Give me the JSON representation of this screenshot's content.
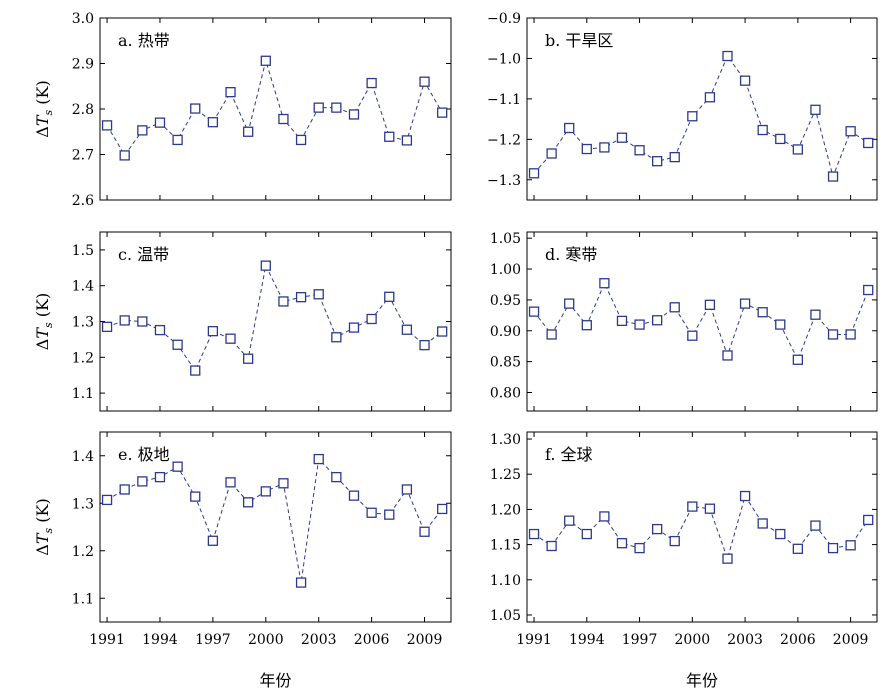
{
  "chart_data": [
    {
      "type": "line",
      "panel_label": "a. 热带",
      "ylabel": "ΔTs (K)",
      "xlabel": "",
      "ylim": [
        2.6,
        3.0
      ],
      "yticks": [
        "3.0",
        "2.9",
        "2.8",
        "2.7",
        "2.6"
      ],
      "xlim": [
        1990.6,
        2010.5
      ],
      "xticks": [],
      "x": [
        1991,
        1992,
        1993,
        1994,
        1995,
        1996,
        1997,
        1998,
        1999,
        2000,
        2001,
        2002,
        2003,
        2004,
        2005,
        2006,
        2007,
        2008,
        2009,
        2010
      ],
      "values": [
        2.764,
        2.698,
        2.753,
        2.77,
        2.732,
        2.801,
        2.771,
        2.837,
        2.75,
        2.906,
        2.778,
        2.732,
        2.803,
        2.803,
        2.788,
        2.857,
        2.739,
        2.731,
        2.86,
        2.792
      ]
    },
    {
      "type": "line",
      "panel_label": "b. 干旱区",
      "ylabel": "",
      "xlabel": "",
      "ylim": [
        -1.35,
        -0.9
      ],
      "yticks": [
        "−0.9",
        "−1.0",
        "−1.1",
        "−1.2",
        "−1.3"
      ],
      "xlim": [
        1990.6,
        2010.5
      ],
      "xticks": [],
      "x": [
        1991,
        1992,
        1993,
        1994,
        1995,
        1996,
        1997,
        1998,
        1999,
        2000,
        2001,
        2002,
        2003,
        2004,
        2005,
        2006,
        2007,
        2008,
        2009,
        2010
      ],
      "values": [
        -1.284,
        -1.235,
        -1.172,
        -1.224,
        -1.22,
        -1.196,
        -1.227,
        -1.254,
        -1.244,
        -1.143,
        -1.096,
        -0.994,
        -1.055,
        -1.177,
        -1.199,
        -1.225,
        -1.127,
        -1.292,
        -1.18,
        -1.209
      ]
    },
    {
      "type": "line",
      "panel_label": "c. 温带",
      "ylabel": "ΔTs (K)",
      "xlabel": "",
      "ylim": [
        1.05,
        1.55
      ],
      "yticks": [
        "1.5",
        "1.4",
        "1.3",
        "1.2",
        "1.1"
      ],
      "xlim": [
        1990.6,
        2010.5
      ],
      "xticks": [],
      "x": [
        1991,
        1992,
        1993,
        1994,
        1995,
        1996,
        1997,
        1998,
        1999,
        2000,
        2001,
        2002,
        2003,
        2004,
        2005,
        2006,
        2007,
        2008,
        2009,
        2010
      ],
      "values": [
        1.285,
        1.303,
        1.3,
        1.276,
        1.235,
        1.163,
        1.273,
        1.252,
        1.196,
        1.456,
        1.356,
        1.368,
        1.376,
        1.256,
        1.283,
        1.307,
        1.369,
        1.277,
        1.234,
        1.272
      ]
    },
    {
      "type": "line",
      "panel_label": "d. 寒带",
      "ylabel": "",
      "xlabel": "",
      "ylim": [
        0.77,
        1.06
      ],
      "yticks": [
        "1.05",
        "1.00",
        "0.95",
        "0.90",
        "0.85",
        "0.80"
      ],
      "xlim": [
        1990.6,
        2010.5
      ],
      "xticks": [],
      "x": [
        1991,
        1992,
        1993,
        1994,
        1995,
        1996,
        1997,
        1998,
        1999,
        2000,
        2001,
        2002,
        2003,
        2004,
        2005,
        2006,
        2007,
        2008,
        2009,
        2010
      ],
      "values": [
        0.931,
        0.894,
        0.944,
        0.909,
        0.977,
        0.916,
        0.91,
        0.917,
        0.938,
        0.892,
        0.942,
        0.86,
        0.944,
        0.93,
        0.91,
        0.853,
        0.926,
        0.894,
        0.894,
        0.966
      ]
    },
    {
      "type": "line",
      "panel_label": "e. 极地",
      "ylabel": "ΔTs (K)",
      "xlabel": "年份",
      "ylim": [
        1.05,
        1.45
      ],
      "yticks": [
        "1.4",
        "1.3",
        "1.2",
        "1.1"
      ],
      "xlim": [
        1990.6,
        2010.5
      ],
      "xticks": [
        "1991",
        "1994",
        "1997",
        "2000",
        "2003",
        "2006",
        "2009"
      ],
      "x": [
        1991,
        1992,
        1993,
        1994,
        1995,
        1996,
        1997,
        1998,
        1999,
        2000,
        2001,
        2002,
        2003,
        2004,
        2005,
        2006,
        2007,
        2008,
        2009,
        2010
      ],
      "values": [
        1.307,
        1.329,
        1.346,
        1.355,
        1.377,
        1.314,
        1.221,
        1.344,
        1.302,
        1.325,
        1.342,
        1.133,
        1.393,
        1.355,
        1.316,
        1.28,
        1.276,
        1.329,
        1.24,
        1.288
      ]
    },
    {
      "type": "line",
      "panel_label": "f. 全球",
      "ylabel": "",
      "xlabel": "年份",
      "ylim": [
        1.04,
        1.31
      ],
      "yticks": [
        "1.30",
        "1.25",
        "1.20",
        "1.15",
        "1.10",
        "1.05"
      ],
      "xlim": [
        1990.6,
        2010.5
      ],
      "xticks": [
        "1991",
        "1994",
        "1997",
        "2000",
        "2003",
        "2006",
        "2009"
      ],
      "x": [
        1991,
        1992,
        1993,
        1994,
        1995,
        1996,
        1997,
        1998,
        1999,
        2000,
        2001,
        2002,
        2003,
        2004,
        2005,
        2006,
        2007,
        2008,
        2009,
        2010
      ],
      "values": [
        1.165,
        1.148,
        1.184,
        1.165,
        1.19,
        1.152,
        1.145,
        1.172,
        1.155,
        1.204,
        1.201,
        1.13,
        1.219,
        1.18,
        1.165,
        1.144,
        1.177,
        1.145,
        1.149,
        1.185
      ]
    }
  ],
  "colors": {
    "series": "#2b3a8c",
    "axis": "#000000"
  }
}
